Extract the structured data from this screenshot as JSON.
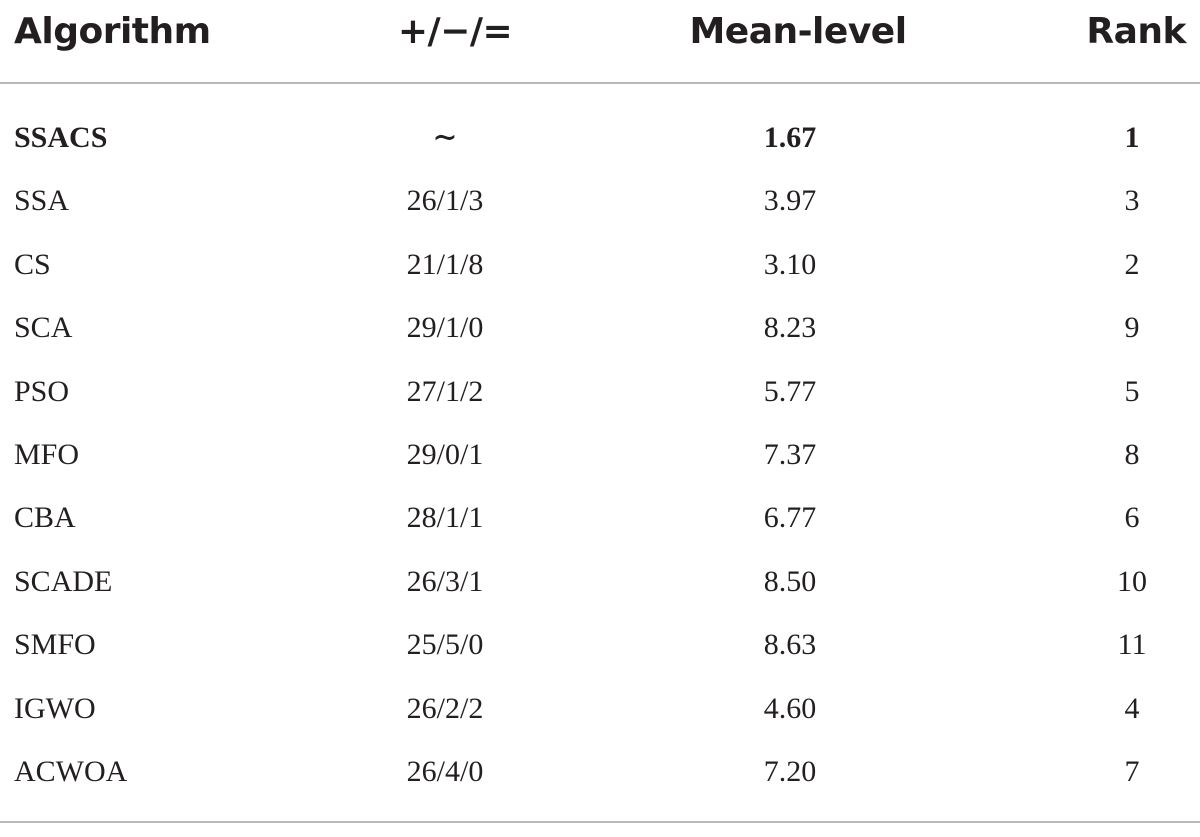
{
  "table": {
    "header": [
      "Algorithm",
      "+/−/=",
      "Mean-level",
      "Rank"
    ],
    "rows": [
      [
        "SSACS",
        "∼",
        "1.67",
        "1"
      ],
      [
        "SSA",
        "26/1/3",
        "3.97",
        "3"
      ],
      [
        "CS",
        "21/1/8",
        "3.10",
        "2"
      ],
      [
        "SCA",
        "29/1/0",
        "8.23",
        "9"
      ],
      [
        "PSO",
        "27/1/2",
        "5.77",
        "5"
      ],
      [
        "MFO",
        "29/0/1",
        "7.37",
        "8"
      ],
      [
        "CBA",
        "28/1/1",
        "6.77",
        "6"
      ],
      [
        "SCADE",
        "26/3/1",
        "8.50",
        "10"
      ],
      [
        "SMFO",
        "25/5/0",
        "8.63",
        "11"
      ],
      [
        "IGWO",
        "26/2/2",
        "4.60",
        "4"
      ],
      [
        "ACWOA",
        "26/4/0",
        "7.20",
        "7"
      ]
    ]
  }
}
